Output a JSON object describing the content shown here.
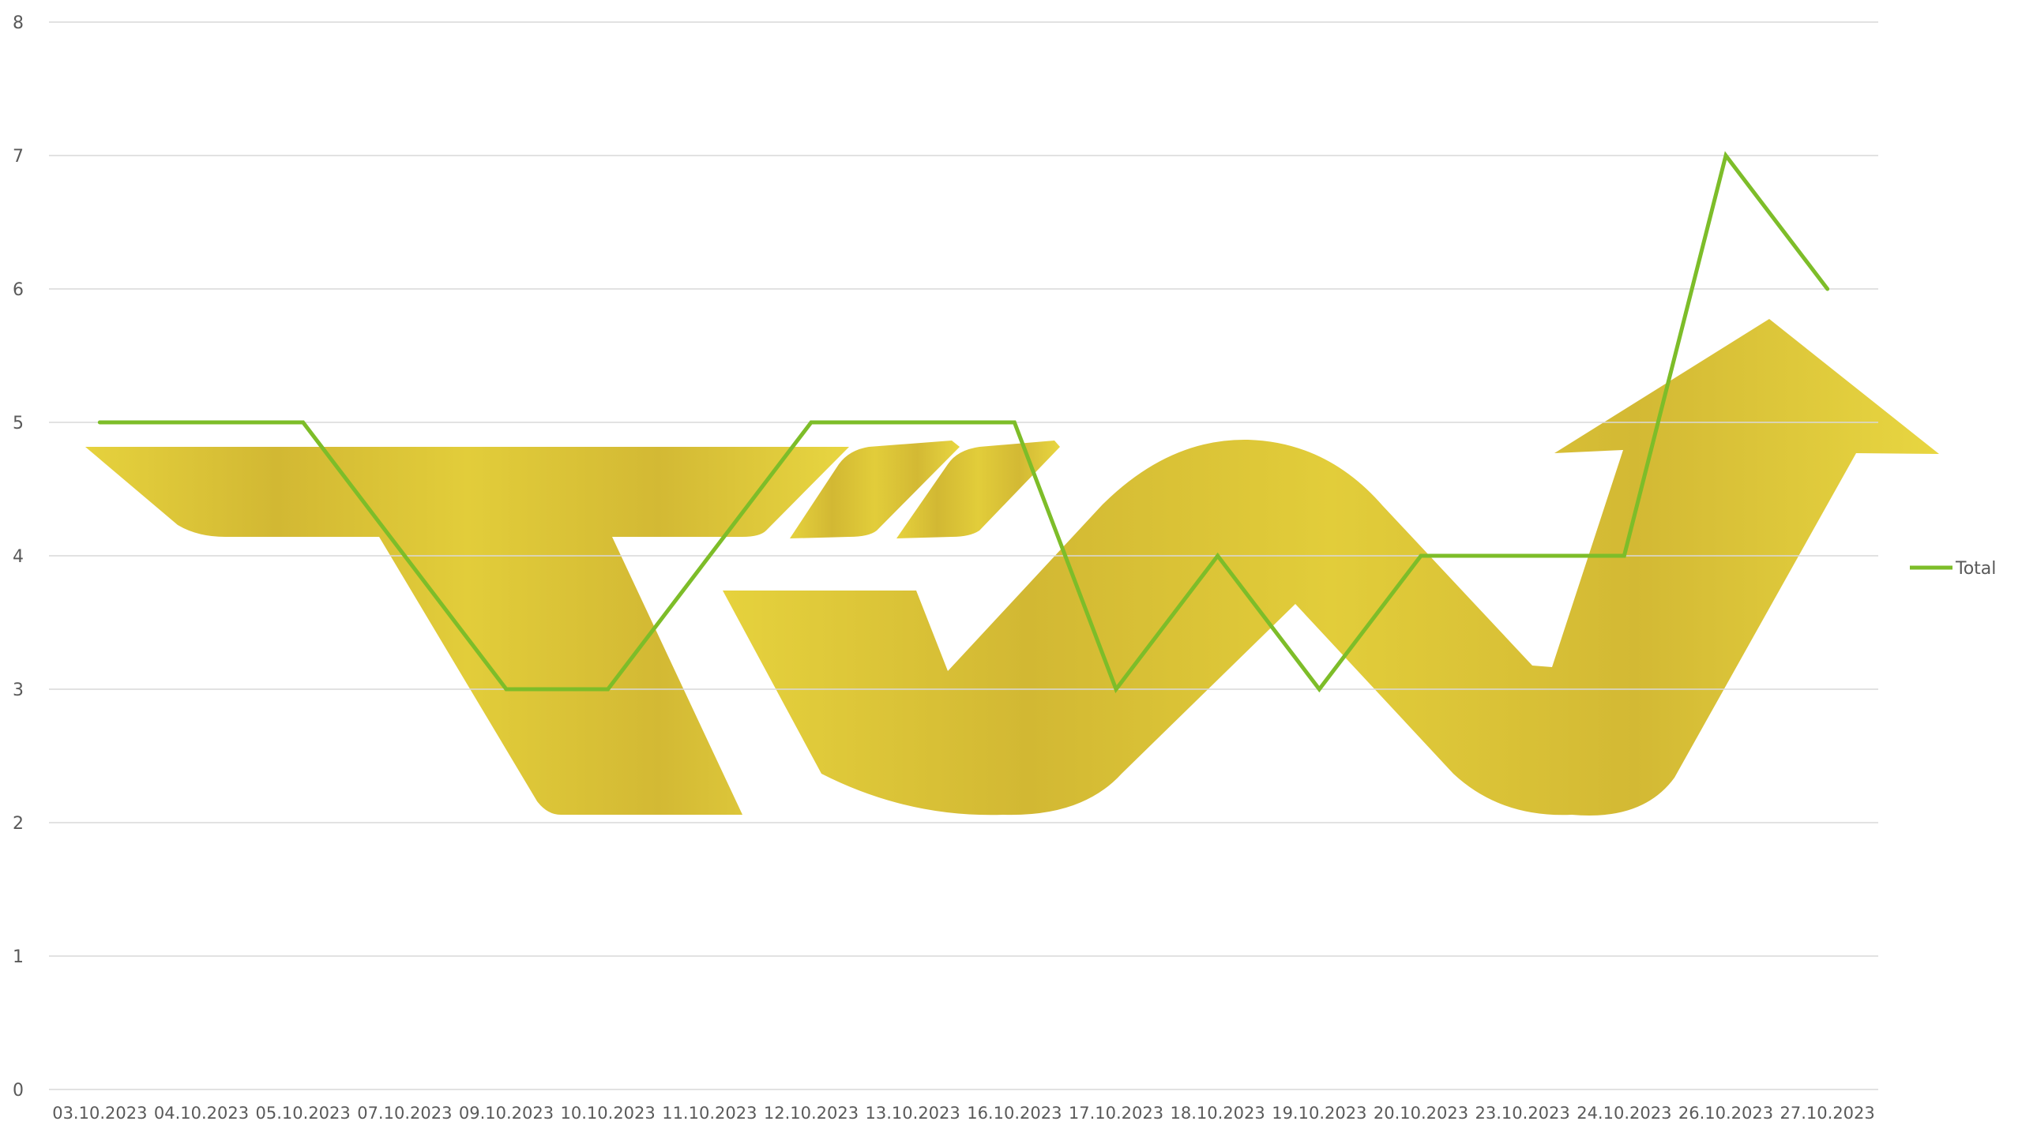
{
  "chart_data": {
    "type": "line",
    "title": "",
    "xlabel": "",
    "ylabel": "",
    "categories": [
      "03.10.2023",
      "04.10.2023",
      "05.10.2023",
      "07.10.2023",
      "09.10.2023",
      "10.10.2023",
      "11.10.2023",
      "12.10.2023",
      "13.10.2023",
      "16.10.2023",
      "17.10.2023",
      "18.10.2023",
      "19.10.2023",
      "20.10.2023",
      "23.10.2023",
      "24.10.2023",
      "26.10.2023",
      "27.10.2023"
    ],
    "series": [
      {
        "name": "Total",
        "values": [
          5,
          5,
          5,
          4,
          3,
          3,
          4,
          5,
          5,
          5,
          3,
          4,
          3,
          4,
          4,
          4,
          7,
          6
        ],
        "color": "#7dbd29"
      }
    ],
    "ylim": [
      0,
      8
    ],
    "yticks": [
      "0",
      "1",
      "2",
      "3",
      "4",
      "5",
      "6",
      "7",
      "8"
    ],
    "grid": true,
    "legend_position": "right",
    "watermark": {
      "text": "TW",
      "description": "TW logo with upward arrow",
      "color": "#d9c12c"
    },
    "colors": {
      "grid": "#d9d9d9",
      "axis_text": "#595959",
      "line": "#7dbd29"
    }
  }
}
